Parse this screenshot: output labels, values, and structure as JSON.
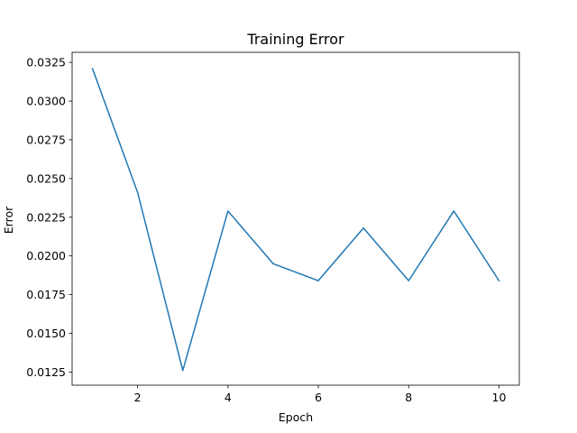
{
  "chart_data": {
    "type": "line",
    "title": "Training Error",
    "xlabel": "Epoch",
    "ylabel": "Error",
    "xlim": [
      0.55,
      10.45
    ],
    "ylim": [
      0.01165,
      0.03315
    ],
    "xticks": [
      2,
      4,
      6,
      8,
      10
    ],
    "xtick_labels": [
      "2",
      "4",
      "6",
      "8",
      "10"
    ],
    "yticks": [
      0.0125,
      0.015,
      0.0175,
      0.02,
      0.0225,
      0.025,
      0.0275,
      0.03,
      0.0325
    ],
    "ytick_labels": [
      "0.0125",
      "0.0150",
      "0.0175",
      "0.0200",
      "0.0225",
      "0.0250",
      "0.0275",
      "0.0300",
      "0.0325"
    ],
    "grid": false,
    "series": [
      {
        "color": "#1f77b4",
        "x": [
          1,
          2,
          3,
          4,
          5,
          6,
          7,
          8,
          9,
          10
        ],
        "y": [
          0.0321,
          0.0241,
          0.0126,
          0.0229,
          0.0195,
          0.0184,
          0.0218,
          0.0184,
          0.0229,
          0.0184
        ]
      }
    ]
  }
}
